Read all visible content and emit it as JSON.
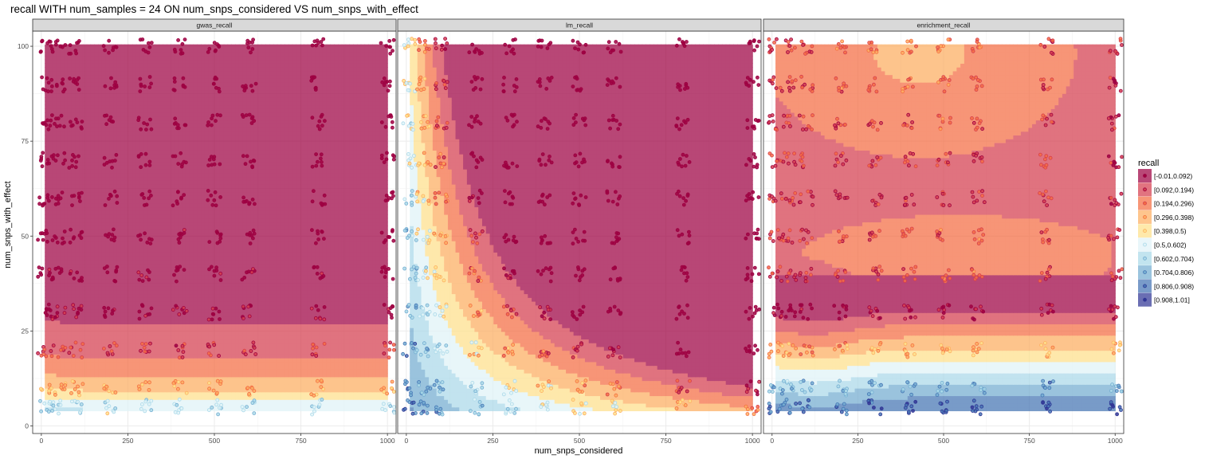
{
  "chart_data": {
    "type": "heatmap",
    "title": "recall WITH num_samples = 24 ON num_snps_considered VS num_snps_with_effect",
    "xlabel": "num_snps_considered",
    "ylabel": "num_snps_with_effect",
    "xlim": [
      -25,
      1025
    ],
    "ylim": [
      -2,
      104
    ],
    "x_ticks": [
      0,
      250,
      500,
      750,
      1000
    ],
    "y_ticks": [
      0,
      25,
      50,
      75,
      100
    ],
    "x_tick_labels": [
      "0",
      "250",
      "500",
      "750",
      "1000"
    ],
    "y_tick_labels": [
      "0",
      "25",
      "50",
      "75",
      "100"
    ],
    "grid": true,
    "facets": [
      "gwas_recall",
      "lm_recall",
      "enrichment_recall"
    ],
    "legend": {
      "title": "recall",
      "position": "right",
      "bins": [
        "[-0.01,0.092)",
        "[0.092,0.194)",
        "[0.194,0.296)",
        "[0.296,0.398)",
        "[0.398,0.5)",
        "[0.5,0.602)",
        "[0.602,0.704)",
        "[0.704,0.806)",
        "[0.806,0.908)",
        "[0.908,1.01]"
      ],
      "colors": [
        "#9e0142",
        "#d53e4f",
        "#f46d43",
        "#fdae61",
        "#fee08b",
        "#e0f3f8",
        "#abd9e9",
        "#74add1",
        "#4575b4",
        "#313695"
      ]
    },
    "design_x": [
      10,
      50,
      100,
      200,
      300,
      400,
      500,
      600,
      800,
      1000
    ],
    "design_y": [
      5,
      10,
      20,
      30,
      40,
      50,
      60,
      70,
      80,
      90,
      100
    ]
  }
}
